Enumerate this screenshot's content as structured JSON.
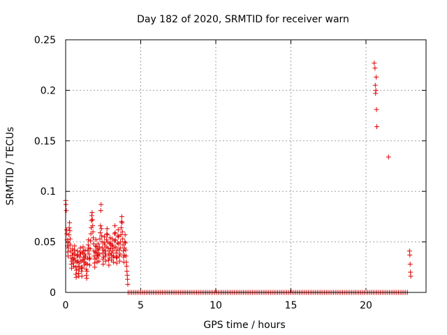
{
  "chart_data": {
    "type": "scatter",
    "title": "Day 182 of 2020, SRMTID for receiver warn",
    "xlabel": "GPS time / hours",
    "ylabel": "SRMTID / TECUs",
    "xlim": [
      0,
      24
    ],
    "ylim": [
      0,
      0.25
    ],
    "grid": true,
    "marker": "+",
    "color": "#e00000",
    "xticks": [
      {
        "value": 0,
        "label": "0"
      },
      {
        "value": 5,
        "label": "5"
      },
      {
        "value": 10,
        "label": "10"
      },
      {
        "value": 15,
        "label": "15"
      },
      {
        "value": 20,
        "label": "20"
      }
    ],
    "yticks": [
      {
        "value": 0,
        "label": "0"
      },
      {
        "value": 0.05,
        "label": "0.05"
      },
      {
        "value": 0.1,
        "label": "0.1"
      },
      {
        "value": 0.15,
        "label": "0.15"
      },
      {
        "value": 0.2,
        "label": "0.2"
      },
      {
        "value": 0.25,
        "label": "0.25"
      }
    ],
    "series": [
      {
        "name": "SRMTID",
        "points": [
          [
            0.0,
            0.091
          ],
          [
            0.02,
            0.087
          ],
          [
            0.04,
            0.081
          ],
          [
            0.06,
            0.062
          ],
          [
            0.08,
            0.058
          ],
          [
            0.1,
            0.052
          ],
          [
            0.12,
            0.046
          ],
          [
            0.14,
            0.04
          ],
          [
            0.16,
            0.036
          ],
          [
            0.18,
            0.044
          ],
          [
            0.2,
            0.049
          ],
          [
            0.22,
            0.057
          ],
          [
            0.24,
            0.064
          ],
          [
            0.26,
            0.069
          ],
          [
            0.28,
            0.061
          ],
          [
            0.3,
            0.053
          ],
          [
            0.32,
            0.047
          ],
          [
            0.34,
            0.041
          ],
          [
            0.36,
            0.034
          ],
          [
            0.38,
            0.028
          ],
          [
            0.4,
            0.024
          ],
          [
            0.42,
            0.031
          ],
          [
            0.44,
            0.037
          ],
          [
            0.46,
            0.043
          ],
          [
            0.48,
            0.039
          ],
          [
            0.5,
            0.033
          ],
          [
            0.52,
            0.029
          ],
          [
            0.54,
            0.026
          ],
          [
            0.56,
            0.034
          ],
          [
            0.58,
            0.042
          ],
          [
            0.6,
            0.046
          ],
          [
            0.62,
            0.038
          ],
          [
            0.64,
            0.032
          ],
          [
            0.66,
            0.025
          ],
          [
            0.68,
            0.018
          ],
          [
            0.7,
            0.015
          ],
          [
            0.72,
            0.022
          ],
          [
            0.74,
            0.03
          ],
          [
            0.76,
            0.036
          ],
          [
            0.78,
            0.041
          ],
          [
            0.8,
            0.037
          ],
          [
            0.82,
            0.031
          ],
          [
            0.84,
            0.026
          ],
          [
            0.86,
            0.019
          ],
          [
            0.88,
            0.016
          ],
          [
            0.9,
            0.023
          ],
          [
            0.92,
            0.029
          ],
          [
            0.94,
            0.035
          ],
          [
            0.96,
            0.04
          ],
          [
            0.98,
            0.044
          ],
          [
            1.0,
            0.038
          ],
          [
            1.02,
            0.031
          ],
          [
            1.04,
            0.025
          ],
          [
            1.06,
            0.021
          ],
          [
            1.08,
            0.016
          ],
          [
            1.1,
            0.024
          ],
          [
            1.12,
            0.032
          ],
          [
            1.14,
            0.039
          ],
          [
            1.16,
            0.045
          ],
          [
            1.18,
            0.041
          ],
          [
            1.2,
            0.035
          ],
          [
            1.22,
            0.03
          ],
          [
            1.24,
            0.027
          ],
          [
            1.26,
            0.033
          ],
          [
            1.28,
            0.038
          ],
          [
            1.3,
            0.042
          ],
          [
            1.32,
            0.036
          ],
          [
            1.34,
            0.029
          ],
          [
            1.36,
            0.023
          ],
          [
            1.38,
            0.017
          ],
          [
            1.4,
            0.014
          ],
          [
            1.42,
            0.021
          ],
          [
            1.44,
            0.028
          ],
          [
            1.46,
            0.034
          ],
          [
            1.48,
            0.041
          ],
          [
            1.5,
            0.047
          ],
          [
            1.52,
            0.052
          ],
          [
            1.54,
            0.044
          ],
          [
            1.56,
            0.038
          ],
          [
            1.58,
            0.033
          ],
          [
            1.6,
            0.027
          ],
          [
            1.62,
            0.034
          ],
          [
            1.64,
            0.043
          ],
          [
            1.66,
            0.051
          ],
          [
            1.68,
            0.058
          ],
          [
            1.7,
            0.064
          ],
          [
            1.72,
            0.071
          ],
          [
            1.74,
            0.076
          ],
          [
            1.76,
            0.079
          ],
          [
            1.78,
            0.072
          ],
          [
            1.8,
            0.066
          ],
          [
            1.82,
            0.06
          ],
          [
            1.84,
            0.054
          ],
          [
            1.86,
            0.048
          ],
          [
            1.88,
            0.041
          ],
          [
            1.9,
            0.036
          ],
          [
            1.92,
            0.029
          ],
          [
            1.94,
            0.025
          ],
          [
            1.96,
            0.033
          ],
          [
            1.98,
            0.04
          ],
          [
            2.0,
            0.046
          ],
          [
            2.02,
            0.052
          ],
          [
            2.04,
            0.045
          ],
          [
            2.06,
            0.039
          ],
          [
            2.08,
            0.034
          ],
          [
            2.1,
            0.03
          ],
          [
            2.12,
            0.037
          ],
          [
            2.14,
            0.043
          ],
          [
            2.16,
            0.048
          ],
          [
            2.18,
            0.042
          ],
          [
            2.2,
            0.036
          ],
          [
            2.22,
            0.031
          ],
          [
            2.24,
            0.038
          ],
          [
            2.26,
            0.045
          ],
          [
            2.28,
            0.053
          ],
          [
            2.3,
            0.059
          ],
          [
            2.32,
            0.066
          ],
          [
            2.34,
            0.081
          ],
          [
            2.36,
            0.087
          ],
          [
            2.38,
            0.063
          ],
          [
            2.4,
            0.056
          ],
          [
            2.42,
            0.05
          ],
          [
            2.44,
            0.044
          ],
          [
            2.46,
            0.039
          ],
          [
            2.48,
            0.033
          ],
          [
            2.5,
            0.028
          ],
          [
            2.52,
            0.035
          ],
          [
            2.54,
            0.042
          ],
          [
            2.56,
            0.049
          ],
          [
            2.58,
            0.055
          ],
          [
            2.6,
            0.047
          ],
          [
            2.62,
            0.041
          ],
          [
            2.64,
            0.036
          ],
          [
            2.66,
            0.031
          ],
          [
            2.68,
            0.038
          ],
          [
            2.7,
            0.045
          ],
          [
            2.72,
            0.052
          ],
          [
            2.74,
            0.058
          ],
          [
            2.76,
            0.063
          ],
          [
            2.78,
            0.057
          ],
          [
            2.8,
            0.05
          ],
          [
            2.82,
            0.044
          ],
          [
            2.84,
            0.038
          ],
          [
            2.86,
            0.032
          ],
          [
            2.88,
            0.027
          ],
          [
            2.9,
            0.034
          ],
          [
            2.92,
            0.041
          ],
          [
            2.94,
            0.048
          ],
          [
            2.96,
            0.054
          ],
          [
            2.98,
            0.049
          ],
          [
            3.0,
            0.043
          ],
          [
            3.02,
            0.037
          ],
          [
            3.04,
            0.032
          ],
          [
            3.06,
            0.039
          ],
          [
            3.08,
            0.046
          ],
          [
            3.1,
            0.053
          ],
          [
            3.12,
            0.047
          ],
          [
            3.14,
            0.041
          ],
          [
            3.16,
            0.035
          ],
          [
            3.18,
            0.03
          ],
          [
            3.2,
            0.036
          ],
          [
            3.22,
            0.044
          ],
          [
            3.24,
            0.051
          ],
          [
            3.26,
            0.058
          ],
          [
            3.28,
            0.066
          ],
          [
            3.3,
            0.059
          ],
          [
            3.32,
            0.052
          ],
          [
            3.34,
            0.045
          ],
          [
            3.36,
            0.039
          ],
          [
            3.38,
            0.034
          ],
          [
            3.4,
            0.029
          ],
          [
            3.42,
            0.035
          ],
          [
            3.44,
            0.042
          ],
          [
            3.46,
            0.049
          ],
          [
            3.48,
            0.056
          ],
          [
            3.5,
            0.062
          ],
          [
            3.52,
            0.055
          ],
          [
            3.54,
            0.048
          ],
          [
            3.56,
            0.042
          ],
          [
            3.58,
            0.036
          ],
          [
            3.6,
            0.031
          ],
          [
            3.62,
            0.038
          ],
          [
            3.64,
            0.044
          ],
          [
            3.66,
            0.05
          ],
          [
            3.68,
            0.057
          ],
          [
            3.7,
            0.064
          ],
          [
            3.72,
            0.07
          ],
          [
            3.74,
            0.075
          ],
          [
            3.76,
            0.069
          ],
          [
            3.78,
            0.06
          ],
          [
            3.8,
            0.053
          ],
          [
            3.82,
            0.047
          ],
          [
            3.84,
            0.041
          ],
          [
            3.86,
            0.035
          ],
          [
            3.88,
            0.03
          ],
          [
            3.9,
            0.037
          ],
          [
            3.92,
            0.044
          ],
          [
            3.94,
            0.05
          ],
          [
            3.96,
            0.057
          ],
          [
            3.98,
            0.049
          ],
          [
            4.0,
            0.042
          ],
          [
            4.02,
            0.036
          ],
          [
            4.04,
            0.03
          ],
          [
            4.06,
            0.026
          ],
          [
            4.08,
            0.021
          ],
          [
            4.1,
            0.017
          ],
          [
            4.12,
            0.013
          ],
          [
            4.14,
            0.008
          ],
          [
            20.55,
            0.227
          ],
          [
            20.6,
            0.222
          ],
          [
            20.62,
            0.205
          ],
          [
            20.64,
            0.197
          ],
          [
            20.66,
            0.2
          ],
          [
            20.68,
            0.213
          ],
          [
            20.7,
            0.181
          ],
          [
            20.72,
            0.164
          ],
          [
            21.5,
            0.134
          ],
          [
            22.9,
            0.041
          ],
          [
            22.92,
            0.037
          ],
          [
            22.94,
            0.028
          ],
          [
            22.96,
            0.02
          ],
          [
            22.98,
            0.016
          ]
        ],
        "zero_runs": [
          {
            "from": 4.16,
            "to": 22.85,
            "step": 0.12
          }
        ]
      }
    ]
  }
}
